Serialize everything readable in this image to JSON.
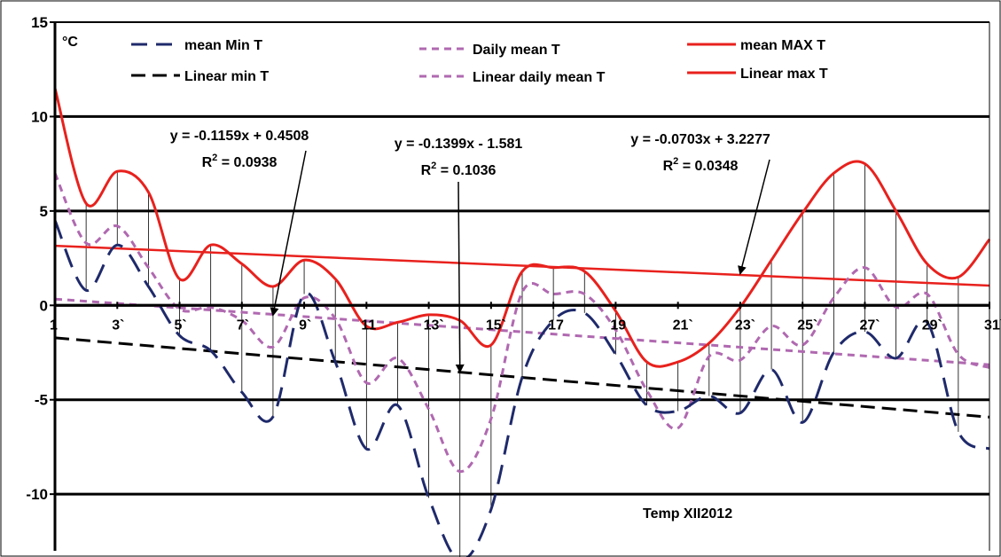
{
  "chart_data": {
    "type": "line",
    "title": "Temp XII2012",
    "unit_label": "°C",
    "ylim": [
      -13,
      15
    ],
    "y_ticks": [
      15,
      10,
      5,
      0,
      -5,
      -10
    ],
    "x": [
      1,
      2,
      3,
      4,
      5,
      6,
      7,
      8,
      9,
      10,
      11,
      12,
      13,
      14,
      15,
      16,
      17,
      18,
      19,
      20,
      21,
      22,
      23,
      24,
      25,
      26,
      27,
      28,
      29,
      30,
      31
    ],
    "x_tick_labels": [
      "1",
      "3`",
      "5`",
      "7`",
      "9`",
      "11",
      "13`",
      "15`",
      "17",
      "19",
      "21`",
      "23`",
      "25`",
      "27`",
      "29`",
      "31`"
    ],
    "grid": "horizontal major lines at each y tick; thin vertical drop lines at each day",
    "series": [
      {
        "name": "mean Min T",
        "color": "#1f2a6b",
        "style": "long-dash",
        "values": [
          4.5,
          0.8,
          3.2,
          1.0,
          -1.6,
          -2.4,
          -4.6,
          -5.9,
          0.6,
          -3.0,
          -7.6,
          -5.3,
          -10.2,
          -13.5,
          -10.8,
          -3.8,
          -0.8,
          -0.4,
          -2.6,
          -5.3,
          -5.6,
          -4.8,
          -5.7,
          -3.4,
          -6.2,
          -2.5,
          -1.4,
          -2.8,
          -0.9,
          -6.7,
          -7.6
        ]
      },
      {
        "name": "Daily mean T",
        "color": "#b069b0",
        "style": "dotted",
        "values": [
          7.0,
          3.3,
          4.2,
          2.0,
          -0.2,
          -0.1,
          -0.8,
          -2.2,
          0.4,
          -0.7,
          -4.1,
          -2.8,
          -5.5,
          -8.8,
          -6.0,
          0.7,
          0.6,
          0.6,
          -1.3,
          -4.5,
          -6.5,
          -2.7,
          -2.9,
          -1.1,
          -2.1,
          0.4,
          2.0,
          -0.1,
          0.6,
          -2.6,
          -3.3
        ]
      },
      {
        "name": "mean MAX T",
        "color": "#e8211d",
        "style": "solid",
        "values": [
          11.5,
          5.4,
          7.1,
          6.0,
          1.4,
          3.2,
          2.2,
          1.0,
          2.4,
          1.4,
          -1.1,
          -0.9,
          -0.5,
          -0.8,
          -2.1,
          1.8,
          2.0,
          1.8,
          -0.3,
          -3.0,
          -3.0,
          -2.0,
          -0.1,
          2.4,
          4.9,
          7.0,
          7.5,
          5.0,
          2.2,
          1.5,
          3.5
        ]
      },
      {
        "name": "Linear min T",
        "color": "#000000",
        "style": "dashed-trend",
        "slope": -0.1399,
        "intercept": -1.581
      },
      {
        "name": "Linear daily mean T",
        "color": "#b069b0",
        "style": "dotted-trend",
        "slope": -0.1159,
        "intercept": 0.4508
      },
      {
        "name": "Linear max T",
        "color": "#e8211d",
        "style": "solid-trend",
        "slope": -0.0703,
        "intercept": 3.2277
      }
    ],
    "annotations": [
      {
        "equation": "y = -0.1159x + 0.4508",
        "r2_prefix": "R",
        "r2_sup": "2",
        "r2_value": " = 0.0938",
        "target_x": 8,
        "target_y": -0.5
      },
      {
        "equation": "y = -0.1399x - 1.581",
        "r2_prefix": "R",
        "r2_sup": "2",
        "r2_value": " = 0.1036",
        "target_x": 14,
        "target_y": -3.5
      },
      {
        "equation": "y = -0.0703x + 3.2277",
        "r2_prefix": "R",
        "r2_sup": "2",
        "r2_value": " = 0.0348",
        "target_x": 23,
        "target_y": 1.7
      }
    ],
    "legend": [
      {
        "label": "mean Min T",
        "series": 0
      },
      {
        "label": "Daily mean T",
        "series": 1
      },
      {
        "label": "mean MAX T",
        "series": 2
      },
      {
        "label": "Linear min T",
        "series": 3
      },
      {
        "label": "Linear daily mean T",
        "series": 4
      },
      {
        "label": "Linear max T",
        "series": 5
      }
    ],
    "legend_placement": "top"
  }
}
